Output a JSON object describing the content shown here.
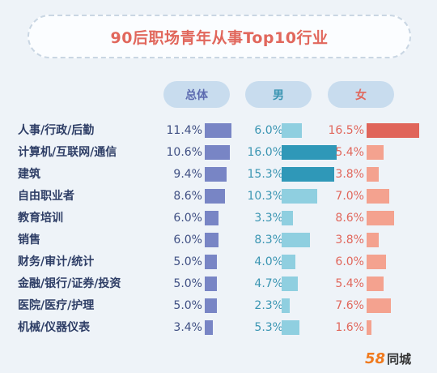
{
  "title": "90后职场青年从事Top10行业",
  "headers": {
    "total": "总体",
    "male": "男",
    "female": "女"
  },
  "logo": {
    "number": "58",
    "text": "同城"
  },
  "colors": {
    "total_bar": "#7885c5",
    "male_bar": "#8fcfe0",
    "male_bar_highlight": "#2f98b8",
    "female_bar": "#f4a28f",
    "female_bar_highlight": "#e0655a",
    "title": "#e1675c"
  },
  "chart_data": {
    "type": "bar",
    "title": "90后职场青年从事Top10行业",
    "categories": [
      "人事/行政/后勤",
      "计算机/互联网/通信",
      "建筑",
      "自由职业者",
      "教育培训",
      "销售",
      "财务/审计/统计",
      "金融/银行/证券/投资",
      "医院/医疗/护理",
      "机械/仪器仪表"
    ],
    "series": [
      {
        "name": "总体",
        "values": [
          11.4,
          10.6,
          9.4,
          8.6,
          6.0,
          6.0,
          5.0,
          5.0,
          5.0,
          3.4
        ],
        "labels": [
          "11.4%",
          "10.6%",
          "9.4%",
          "8.6%",
          "6.0%",
          "6.0%",
          "5.0%",
          "5.0%",
          "5.0%",
          "3.4%"
        ]
      },
      {
        "name": "男",
        "values": [
          6.0,
          16.0,
          15.3,
          10.3,
          3.3,
          8.3,
          4.0,
          4.7,
          2.3,
          5.3
        ],
        "labels": [
          "6.0%",
          "16.0%",
          "15.3%",
          "10.3%",
          "3.3%",
          "8.3%",
          "4.0%",
          "4.7%",
          "2.3%",
          "5.3%"
        ]
      },
      {
        "name": "女",
        "values": [
          16.5,
          5.4,
          3.8,
          7.0,
          8.6,
          3.8,
          6.0,
          5.4,
          7.6,
          1.6
        ],
        "labels": [
          "16.5%",
          "5.4%",
          "3.8%",
          "7.0%",
          "8.6%",
          "3.8%",
          "6.0%",
          "5.4%",
          "7.6%",
          "1.6%"
        ]
      }
    ],
    "highlight_threshold": 15
  }
}
